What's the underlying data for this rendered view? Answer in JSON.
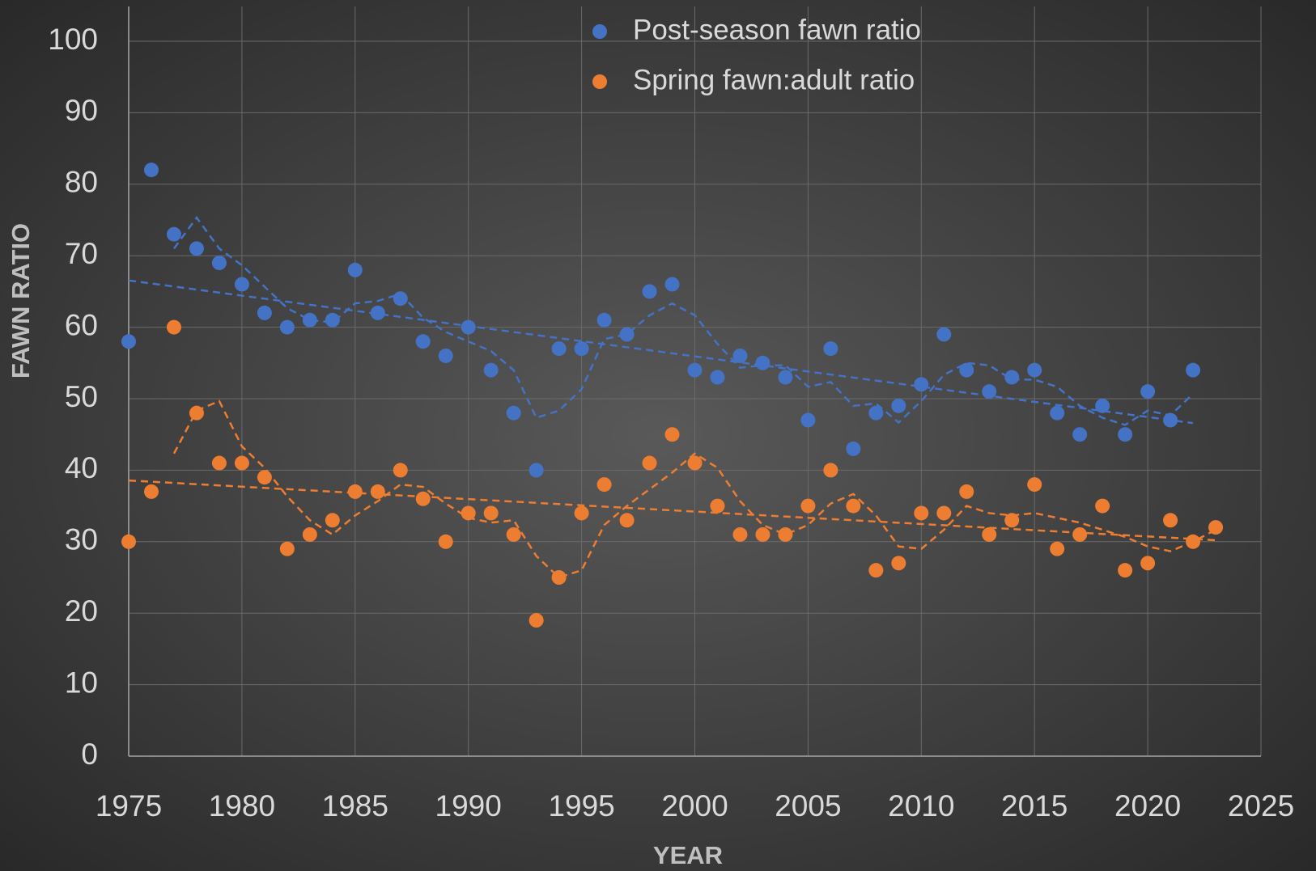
{
  "chart_data": {
    "type": "scatter",
    "x_label": "YEAR",
    "y_label": "FAWN RATIO",
    "xlim": [
      1975,
      2025
    ],
    "xticks": [
      1975,
      1980,
      1985,
      1990,
      1995,
      2000,
      2005,
      2010,
      2015,
      2020,
      2025
    ],
    "ylim": [
      0,
      100
    ],
    "yticks": [
      0,
      10,
      20,
      30,
      40,
      50,
      60,
      70,
      80,
      90,
      100
    ],
    "grid": true,
    "legend": "top",
    "moving_average_period": 3,
    "linear_trend": true,
    "series": [
      {
        "name": "Post-season fawn ratio",
        "color": "#4472c4",
        "x": [
          1975,
          1976,
          1977,
          1978,
          1979,
          1980,
          1981,
          1982,
          1983,
          1984,
          1985,
          1986,
          1987,
          1988,
          1989,
          1990,
          1991,
          1992,
          1993,
          1994,
          1995,
          1996,
          1997,
          1998,
          1999,
          2000,
          2001,
          2002,
          2003,
          2004,
          2005,
          2006,
          2007,
          2008,
          2009,
          2010,
          2011,
          2012,
          2013,
          2014,
          2015,
          2016,
          2017,
          2018,
          2019,
          2020,
          2021,
          2022
        ],
        "values": [
          58,
          82,
          73,
          71,
          69,
          66,
          62,
          60,
          61,
          61,
          68,
          62,
          64,
          58,
          56,
          60,
          54,
          48,
          40,
          57,
          57,
          61,
          59,
          65,
          66,
          54,
          53,
          56,
          55,
          53,
          47,
          57,
          43,
          48,
          49,
          52,
          59,
          54,
          51,
          53,
          54,
          48,
          45,
          49,
          45,
          51,
          47,
          54
        ]
      },
      {
        "name": "Spring fawn:adult ratio",
        "color": "#ed7d31",
        "x": [
          1975,
          1976,
          1977,
          1978,
          1979,
          1980,
          1981,
          1982,
          1983,
          1984,
          1985,
          1986,
          1987,
          1988,
          1989,
          1990,
          1991,
          1992,
          1993,
          1994,
          1995,
          1996,
          1997,
          1998,
          1999,
          2000,
          2001,
          2002,
          2003,
          2004,
          2005,
          2006,
          2007,
          2008,
          2009,
          2010,
          2011,
          2012,
          2013,
          2014,
          2015,
          2016,
          2017,
          2018,
          2019,
          2020,
          2021,
          2022,
          2023
        ],
        "values": [
          30,
          37,
          60,
          48,
          41,
          41,
          39,
          29,
          31,
          33,
          37,
          37,
          40,
          36,
          30,
          34,
          34,
          31,
          19,
          25,
          34,
          38,
          33,
          41,
          45,
          41,
          35,
          31,
          31,
          31,
          35,
          40,
          35,
          26,
          27,
          34,
          34,
          37,
          31,
          33,
          38,
          29,
          31,
          35,
          26,
          27,
          33,
          30,
          32
        ]
      }
    ]
  }
}
